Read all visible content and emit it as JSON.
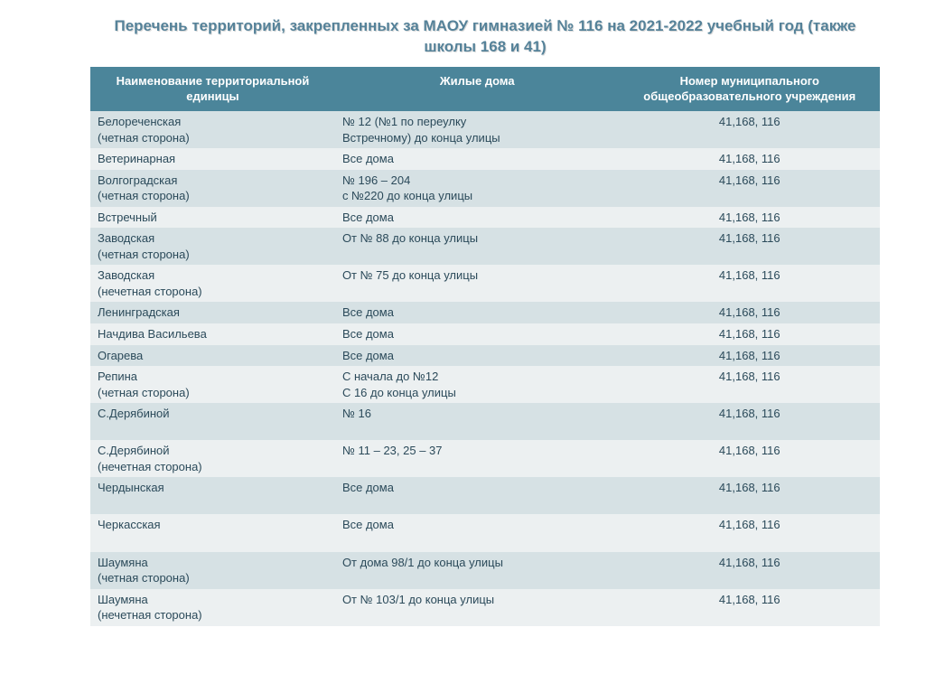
{
  "title": "Перечень территорий, закрепленных за МАОУ гимназией № 116   на 2021-2022 учебный год (также школы 168 и 41)",
  "columns": [
    "Наименование территориальной единицы",
    "Жилые дома",
    "Номер муниципального общеобразовательного учреждения"
  ],
  "header_bg": "#4b859a",
  "header_fg": "#ffffff",
  "row_odd_bg": "#d6e1e4",
  "row_even_bg": "#ecf0f1",
  "text_color": "#2b4a5a",
  "title_color": "#558299",
  "rows": [
    {
      "name_l1": "Белореченская",
      "name_l2": "(четная сторона)",
      "houses_l1": "№ 12 (№1 по переулку",
      "houses_l2": "Встречному) до конца улицы",
      "number": "41,168, 116"
    },
    {
      "name_l1": "Ветеринарная",
      "name_l2": "",
      "houses_l1": "Все дома",
      "houses_l2": "",
      "number": "41,168, 116"
    },
    {
      "name_l1": "Волгоградская",
      "name_l2": "(четная сторона)",
      "houses_l1": "№ 196 – 204",
      "houses_l2": "с №220 до конца улицы",
      "number": "41,168, 116"
    },
    {
      "name_l1": "Встречный",
      "name_l2": "",
      "houses_l1": "Все дома",
      "houses_l2": "",
      "number": "41,168, 116"
    },
    {
      "name_l1": "Заводская",
      "name_l2": "(четная сторона)",
      "houses_l1": "От № 88 до конца улицы",
      "houses_l2": "",
      "number": "41,168, 116"
    },
    {
      "name_l1": "Заводская",
      "name_l2": "(нечетная сторона)",
      "houses_l1": "От № 75 до конца улицы",
      "houses_l2": "",
      "number": "41,168, 116"
    },
    {
      "name_l1": "Ленинградская",
      "name_l2": "",
      "houses_l1": "Все дома",
      "houses_l2": "",
      "number": "41,168, 116"
    },
    {
      "name_l1": "Начдива Васильева",
      "name_l2": "",
      "houses_l1": "Все дома",
      "houses_l2": "",
      "number": "41,168, 116"
    },
    {
      "name_l1": "Огарева",
      "name_l2": "",
      "houses_l1": "Все дома",
      "houses_l2": "",
      "number": "41,168, 116"
    },
    {
      "name_l1": "Репина",
      "name_l2": "(четная сторона)",
      "houses_l1": "С начала до №12",
      "houses_l2": "С 16 до конца улицы",
      "number": "41,168, 116"
    },
    {
      "name_l1": "С.Дерябиной",
      "name_l2": " ",
      "houses_l1": "№ 16",
      "houses_l2": "",
      "number": "41,168, 116"
    },
    {
      "name_l1": "С.Дерябиной",
      "name_l2": "(нечетная сторона)",
      "houses_l1": "№ 11 – 23, 25 – 37",
      "houses_l2": "",
      "number": "41,168, 116"
    },
    {
      "name_l1": "Чердынская",
      "name_l2": " ",
      "houses_l1": "Все дома",
      "houses_l2": "",
      "number": "41,168, 116"
    },
    {
      "name_l1": "Черкасская",
      "name_l2": " ",
      "houses_l1": "Все дома",
      "houses_l2": "",
      "number": "41,168, 116"
    },
    {
      "name_l1": "Шаумяна",
      "name_l2": "(четная сторона)",
      "houses_l1": "От дома 98/1 до конца улицы",
      "houses_l2": "",
      "number": "41,168, 116"
    },
    {
      "name_l1": "Шаумяна",
      "name_l2": "(нечетная сторона)",
      "houses_l1": "От № 103/1 до конца улицы",
      "houses_l2": "",
      "number": "41,168, 116"
    }
  ]
}
